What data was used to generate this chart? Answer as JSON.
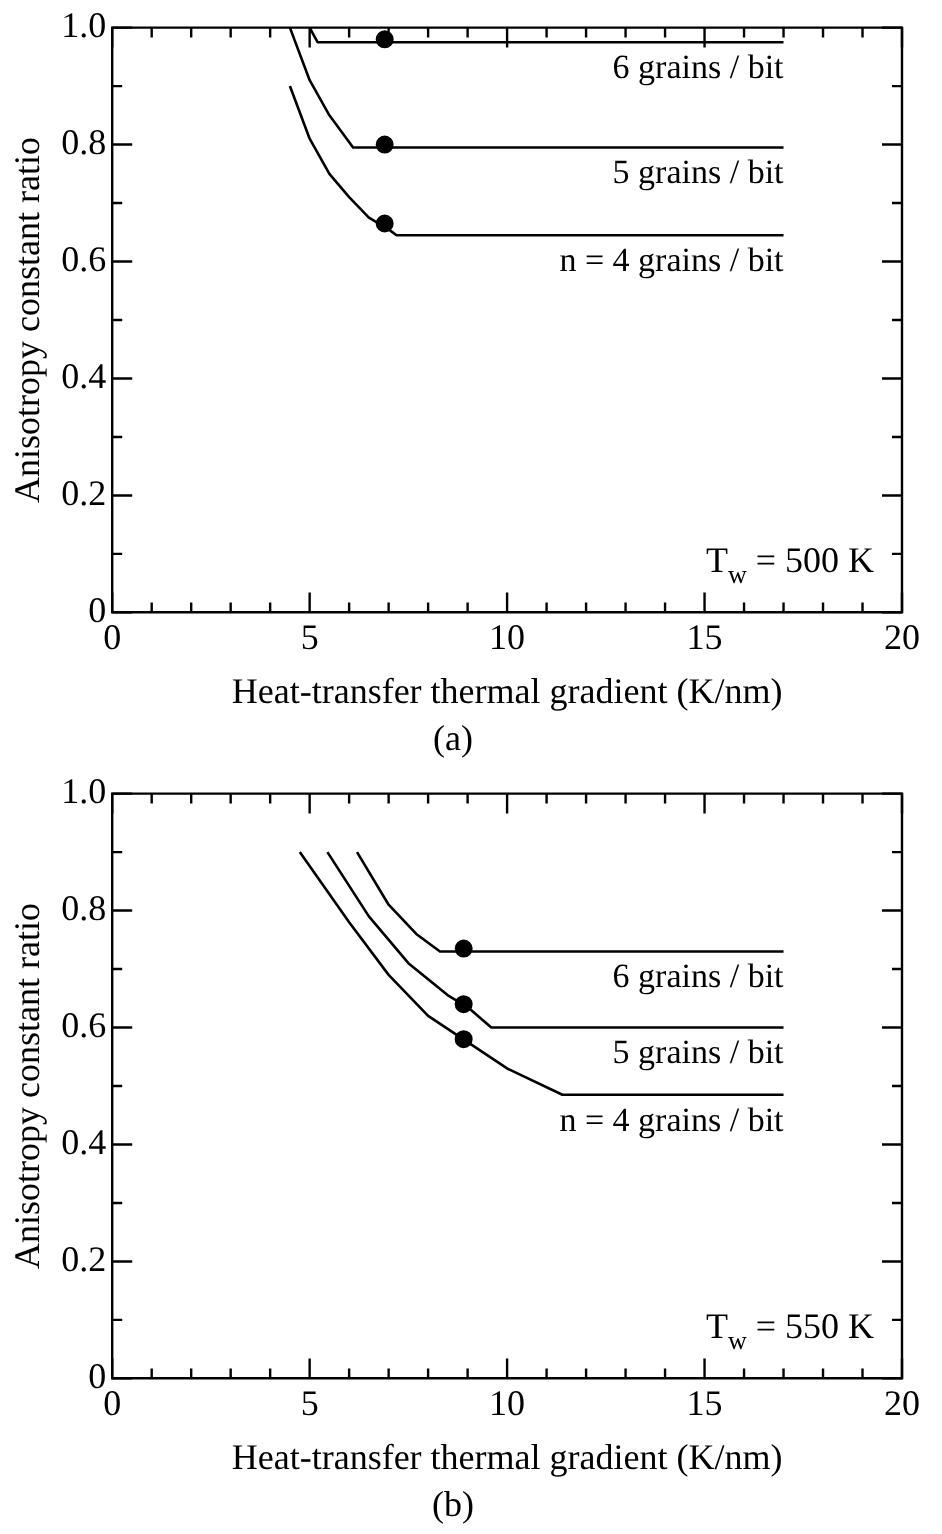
{
  "chart_data": [
    {
      "type": "line",
      "title": "(a)",
      "xlabel": "Heat-transfer thermal gradient (K/nm)",
      "ylabel": "Anisotropy constant ratio",
      "annotations": [
        "T$_{w}$ = 500 K"
      ],
      "xlim": [
        0,
        20
      ],
      "ylim": [
        0,
        1
      ],
      "xticks": [
        0,
        {
          "value": 1,
          "label": null
        },
        {
          "value": 2,
          "label": null
        },
        {
          "value": 3,
          "label": null
        },
        {
          "value": 4,
          "label": null
        },
        5,
        {
          "value": 6,
          "label": null
        },
        {
          "value": 7,
          "label": null
        },
        {
          "value": 8,
          "label": null
        },
        {
          "value": 9,
          "label": null
        },
        10,
        {
          "value": 11,
          "label": null
        },
        {
          "value": 12,
          "label": null
        },
        {
          "value": 13,
          "label": null
        },
        {
          "value": 14,
          "label": null
        },
        15,
        {
          "value": 16,
          "label": null
        },
        {
          "value": 17,
          "label": null
        },
        {
          "value": 18,
          "label": null
        },
        {
          "value": 19,
          "label": null
        },
        20
      ],
      "yticks": [
        0,
        {
          "value": 0.1,
          "label": null
        },
        0.2,
        {
          "value": 0.3,
          "label": null
        },
        0.4,
        {
          "value": 0.5,
          "label": null
        },
        0.6,
        {
          "value": 0.7,
          "label": null
        },
        0.8,
        {
          "value": 0.9,
          "label": null
        },
        {
          "value": 1,
          "label": "1.0"
        }
      ],
      "series": [
        {
          "name": "6 grains / bit",
          "type": "line",
          "color": "#000000",
          "x": [
            5.0,
            5.2,
            17
          ],
          "values": [
            1.0,
            0.975,
            0.975
          ]
        },
        {
          "name": "5 grains / bit",
          "type": "line",
          "color": "#000000",
          "x": [
            4.5,
            5,
            5.5,
            6.1,
            17
          ],
          "values": [
            1.0,
            0.91,
            0.85,
            0.795,
            0.795
          ]
        },
        {
          "name": "n = 4 grains / bit",
          "type": "line",
          "color": "#000000",
          "x": [
            4.5,
            5,
            5.5,
            6,
            6.5,
            7,
            7.2,
            17
          ],
          "values": [
            0.9,
            0.81,
            0.75,
            0.71,
            0.675,
            0.655,
            0.645,
            0.645
          ]
        },
        {
          "type": "scatter",
          "marker": "circle",
          "color": "#000000",
          "x": [
            6.9,
            6.9,
            6.9
          ],
          "values": [
            0.98,
            0.8,
            0.665
          ]
        }
      ]
    },
    {
      "type": "line",
      "title": "(b)",
      "xlabel": "Heat-transfer thermal gradient (K/nm)",
      "ylabel": "Anisotropy constant ratio",
      "annotations": [
        "T$_{w}$ = 550 K"
      ],
      "xlim": [
        0,
        20
      ],
      "ylim": [
        0,
        1
      ],
      "xticks": [
        0,
        {
          "value": 1,
          "label": null
        },
        {
          "value": 2,
          "label": null
        },
        {
          "value": 3,
          "label": null
        },
        {
          "value": 4,
          "label": null
        },
        5,
        {
          "value": 6,
          "label": null
        },
        {
          "value": 7,
          "label": null
        },
        {
          "value": 8,
          "label": null
        },
        {
          "value": 9,
          "label": null
        },
        10,
        {
          "value": 11,
          "label": null
        },
        {
          "value": 12,
          "label": null
        },
        {
          "value": 13,
          "label": null
        },
        {
          "value": 14,
          "label": null
        },
        15,
        {
          "value": 16,
          "label": null
        },
        {
          "value": 17,
          "label": null
        },
        {
          "value": 18,
          "label": null
        },
        {
          "value": 19,
          "label": null
        },
        20
      ],
      "yticks": [
        0,
        {
          "value": 0.1,
          "label": null
        },
        0.2,
        {
          "value": 0.3,
          "label": null
        },
        0.4,
        {
          "value": 0.5,
          "label": null
        },
        0.6,
        {
          "value": 0.7,
          "label": null
        },
        0.8,
        {
          "value": 0.9,
          "label": null
        },
        {
          "value": 1,
          "label": "1.0"
        }
      ],
      "series": [
        {
          "name": "6 grains / bit",
          "type": "line",
          "color": "#000000",
          "x": [
            6.2,
            7,
            7.7,
            8.3,
            17
          ],
          "values": [
            0.9,
            0.81,
            0.76,
            0.73,
            0.73
          ]
        },
        {
          "name": "5 grains / bit",
          "type": "line",
          "color": "#000000",
          "x": [
            5.45,
            6.5,
            7.5,
            8.5,
            9,
            9.6,
            17
          ],
          "values": [
            0.9,
            0.79,
            0.71,
            0.655,
            0.635,
            0.6,
            0.6
          ]
        },
        {
          "name": "n = 4 grains / bit",
          "type": "line",
          "color": "#000000",
          "x": [
            4.75,
            6,
            7,
            8,
            9,
            10,
            11.4,
            17
          ],
          "values": [
            0.9,
            0.78,
            0.69,
            0.62,
            0.575,
            0.53,
            0.485,
            0.485
          ]
        },
        {
          "type": "scatter",
          "marker": "circle",
          "color": "#000000",
          "x": [
            8.9,
            8.9,
            8.9
          ],
          "values": [
            0.735,
            0.64,
            0.58
          ]
        }
      ]
    }
  ]
}
